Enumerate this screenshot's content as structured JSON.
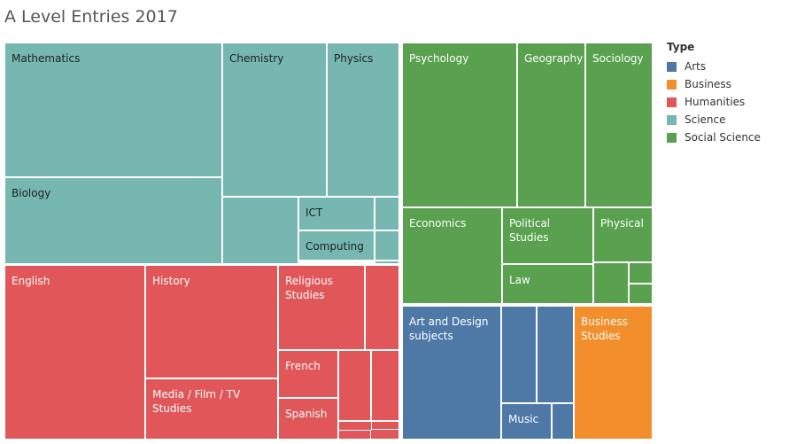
{
  "chart_data": {
    "type": "treemap",
    "title": "A Level Entries 2017",
    "legend": {
      "title": "Type",
      "placement": "right",
      "entries": [
        {
          "name": "Arts",
          "color": "#4e79a7"
        },
        {
          "name": "Business",
          "color": "#f28e2b"
        },
        {
          "name": "Humanities",
          "color": "#e15759"
        },
        {
          "name": "Science",
          "color": "#76b7b2"
        },
        {
          "name": "Social Science",
          "color": "#59a14f"
        }
      ]
    },
    "groups": [
      {
        "name": "Science",
        "color": "#76b7b2",
        "items": [
          {
            "label": "Mathematics",
            "value": 91
          },
          {
            "label": "Biology",
            "value": 56
          },
          {
            "label": "Chemistry",
            "value": 40
          },
          {
            "label": "Physics",
            "value": 34
          },
          {
            "label": "",
            "value": 12
          },
          {
            "label": "ICT",
            "value": 7
          },
          {
            "label": "Computing",
            "value": 7
          },
          {
            "label": "",
            "value": 2
          },
          {
            "label": "",
            "value": 2
          },
          {
            "label": "",
            "value": 1
          }
        ]
      },
      {
        "name": "Humanities",
        "color": "#e15759",
        "items": [
          {
            "label": "English",
            "value": 62
          },
          {
            "label": "History",
            "value": 46
          },
          {
            "label": "Media / Film / TV\nStudies",
            "value": 26
          },
          {
            "label": "Religious\nStudies",
            "value": 23
          },
          {
            "label": "",
            "value": 8
          },
          {
            "label": "French",
            "value": 8
          },
          {
            "label": "Spanish",
            "value": 7
          },
          {
            "label": "",
            "value": 5
          },
          {
            "label": "",
            "value": 5
          },
          {
            "label": "",
            "value": 4
          },
          {
            "label": "",
            "value": 4
          },
          {
            "label": "",
            "value": 3
          }
        ]
      },
      {
        "name": "Social Science",
        "color": "#59a14f",
        "items": [
          {
            "label": "Psychology",
            "value": 59
          },
          {
            "label": "Geography",
            "value": 36
          },
          {
            "label": "Sociology",
            "value": 36
          },
          {
            "label": "Economics",
            "value": 31
          },
          {
            "label": "Political\nStudies",
            "value": 15
          },
          {
            "label": "Law",
            "value": 11
          },
          {
            "label": "Physical",
            "value": 14
          },
          {
            "label": "",
            "value": 4
          },
          {
            "label": "",
            "value": 2
          },
          {
            "label": "",
            "value": 2
          }
        ]
      },
      {
        "name": "Arts",
        "color": "#4e79a7",
        "items": [
          {
            "label": "Art and Design\nsubjects",
            "value": 40
          },
          {
            "label": "",
            "value": 11
          },
          {
            "label": "",
            "value": 11
          },
          {
            "label": "Music",
            "value": 5
          },
          {
            "label": "",
            "value": 3
          }
        ]
      },
      {
        "name": "Business",
        "color": "#f28e2b",
        "items": [
          {
            "label": "Business\nStudies",
            "value": 30
          }
        ]
      }
    ]
  }
}
